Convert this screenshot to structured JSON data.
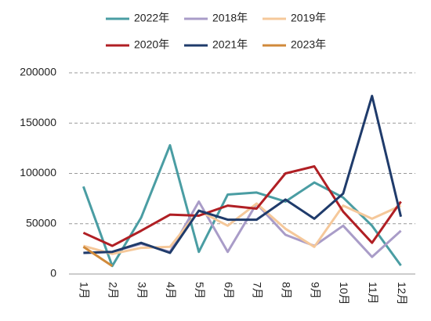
{
  "chart_data": {
    "type": "line",
    "categories": [
      "1月",
      "2月",
      "3月",
      "4月",
      "5月",
      "6月",
      "7月",
      "8月",
      "9月",
      "10月",
      "11月",
      "12月"
    ],
    "series": [
      {
        "name": "2022年",
        "color": "#4a9da3",
        "values": [
          87000,
          8000,
          56000,
          128000,
          22000,
          79000,
          81000,
          72000,
          91000,
          76000,
          48000,
          8500
        ]
      },
      {
        "name": "2018年",
        "color": "#a99cc8",
        "values": [
          21000,
          22000,
          30000,
          22000,
          72000,
          22000,
          70000,
          39000,
          28000,
          48000,
          17000,
          43000
        ]
      },
      {
        "name": "2019年",
        "color": "#f5c89a",
        "values": [
          28000,
          20000,
          26000,
          27000,
          63000,
          48000,
          70000,
          45000,
          27000,
          68000,
          55000,
          68000
        ]
      },
      {
        "name": "2020年",
        "color": "#b01f24",
        "values": [
          41000,
          28000,
          43000,
          59000,
          58000,
          68000,
          65000,
          100000,
          107000,
          62000,
          31000,
          72000
        ]
      },
      {
        "name": "2021年",
        "color": "#1f3b6b",
        "values": [
          21000,
          22000,
          31000,
          21000,
          63000,
          54000,
          54000,
          74000,
          55000,
          80000,
          177000,
          57000
        ]
      },
      {
        "name": "2023年",
        "color": "#d08a3a",
        "values": [
          27000,
          8000,
          null,
          null,
          null,
          null,
          null,
          null,
          null,
          null,
          null,
          null
        ]
      }
    ],
    "ylim": [
      0,
      200000
    ],
    "yticks": [
      0,
      50000,
      100000,
      150000,
      200000
    ],
    "grid": true
  }
}
